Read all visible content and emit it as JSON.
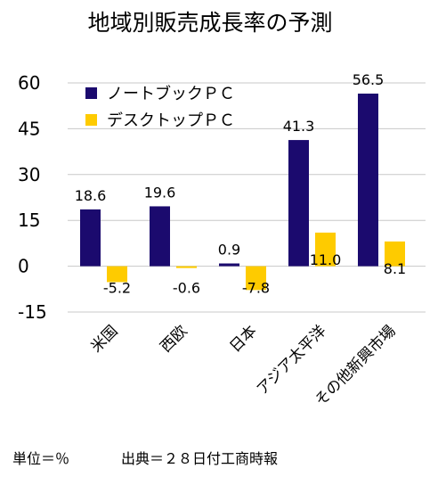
{
  "chart_data": {
    "type": "bar",
    "title": "地域別販売成長率の予測",
    "categories": [
      "米国",
      "西欧",
      "日本",
      "アジア太平洋",
      "その他新興市場"
    ],
    "series": [
      {
        "name": "ノートブックＰＣ",
        "color": "#1b0a6e",
        "values": [
          18.6,
          19.6,
          0.9,
          41.3,
          56.5
        ],
        "labels": [
          "18.6",
          "19.6",
          "0.9",
          "41.3",
          "56.5"
        ]
      },
      {
        "name": "デスクトップＰＣ",
        "color": "#fecb00",
        "values": [
          -5.2,
          -0.6,
          -7.8,
          11.0,
          8.1
        ],
        "labels": [
          "-5.2",
          "-0.6",
          "-7.8",
          "11.0",
          "8.1"
        ]
      }
    ],
    "ylim": [
      -15,
      60
    ],
    "yticks": [
      60,
      45,
      30,
      15,
      0,
      -15
    ],
    "ytick_labels": [
      "60",
      "45",
      "30",
      "15",
      "0",
      "-15"
    ],
    "grid": true,
    "legend": "top-left"
  },
  "footer": {
    "unit": "単位＝％",
    "source": "出典＝２８日付工商時報"
  }
}
